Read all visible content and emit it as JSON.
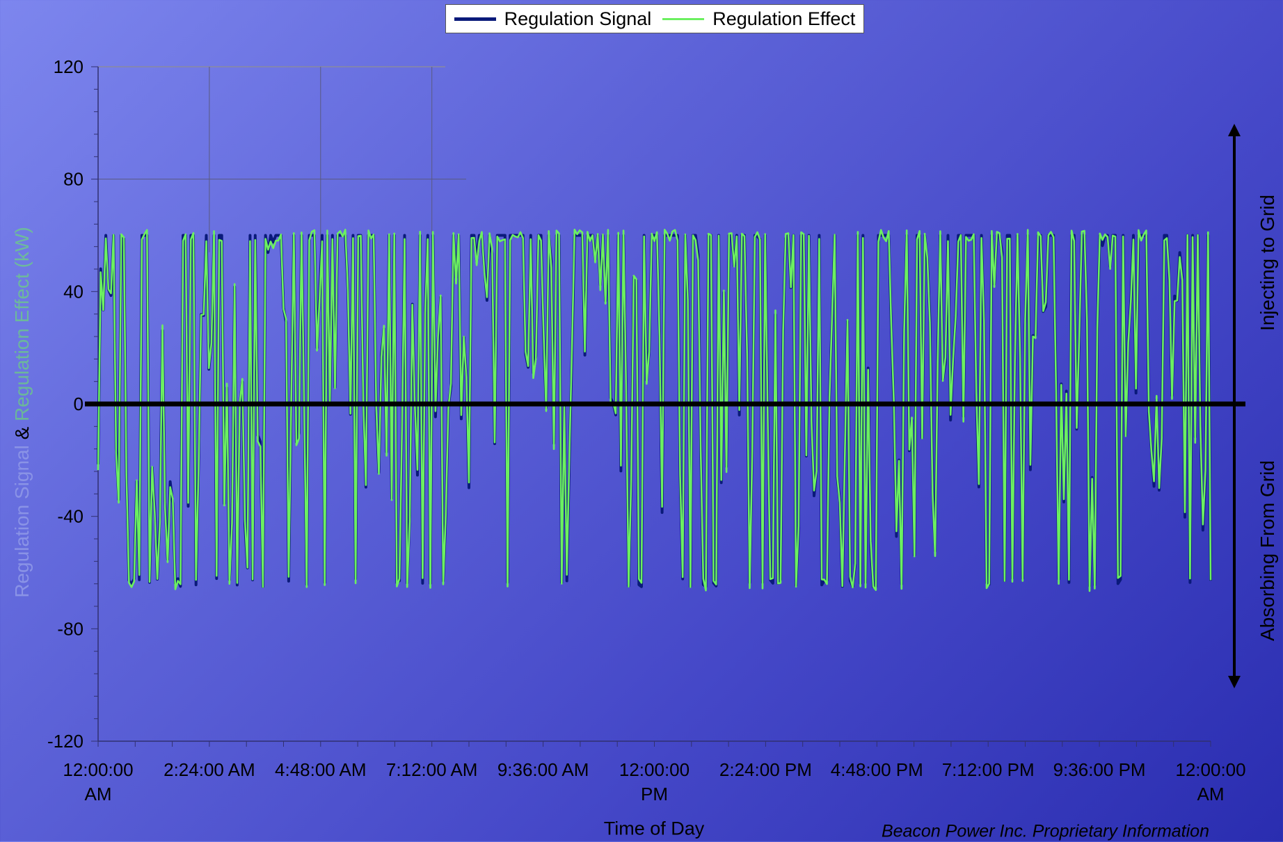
{
  "chart_data": {
    "type": "line",
    "xlabel": "Time of Day",
    "ylabel_parts": [
      "Regulation Signal",
      "&",
      "Regulation Effect (kW)"
    ],
    "ylim": [
      -120,
      120
    ],
    "yticks": [
      "120",
      "80",
      "40",
      "0",
      "-40",
      "-80",
      "-120"
    ],
    "xticks": [
      [
        "12:00:00",
        "AM"
      ],
      [
        "2:24:00 AM"
      ],
      [
        "4:48:00 AM"
      ],
      [
        "7:12:00 AM"
      ],
      [
        "9:36:00 AM"
      ],
      [
        "12:00:00",
        "PM"
      ],
      [
        "2:24:00 PM"
      ],
      [
        "4:48:00 PM"
      ],
      [
        "7:12:00 PM"
      ],
      [
        "9:36:00 PM"
      ],
      [
        "12:00:00",
        "AM"
      ]
    ],
    "xrange_hours": [
      0,
      24
    ],
    "series": [
      {
        "name": "Regulation Signal",
        "color": "#0a1a7a",
        "range": [
          -65,
          60
        ],
        "samples_per_hour": 18
      },
      {
        "name": "Regulation Effect",
        "color": "#6cf060",
        "range": [
          -65,
          61
        ],
        "samples_per_hour": 18
      }
    ],
    "legend_position": "top-center",
    "annotations": {
      "up": "Injecting to Grid",
      "down": "Absorbing From Grid",
      "credit": "Beacon Power Inc. Proprietary Information"
    }
  }
}
